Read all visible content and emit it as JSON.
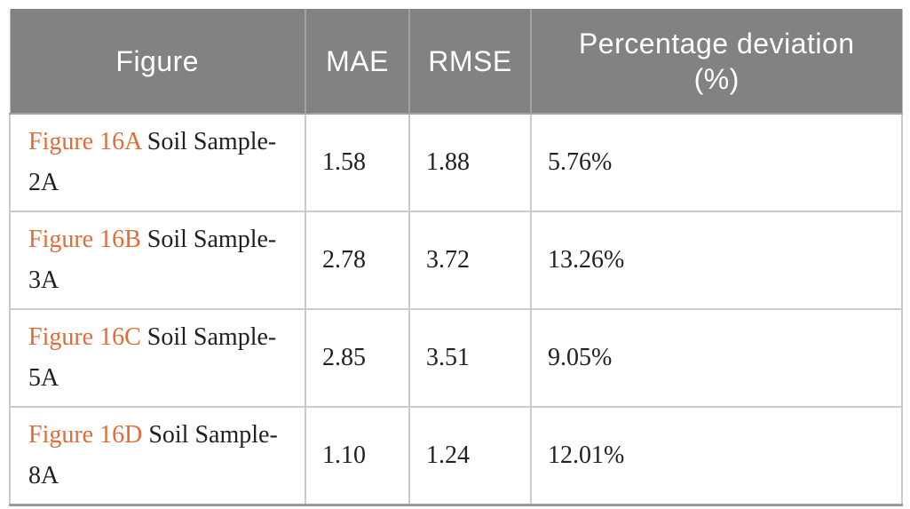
{
  "table": {
    "headers": {
      "figure": "Figure",
      "mae": "MAE",
      "rmse": "RMSE",
      "deviation": "Percentage deviation (%)"
    },
    "rows": [
      {
        "figure_link": "Figure 16A",
        "figure_text": "Soil Sample-2A",
        "mae": "1.58",
        "rmse": "1.88",
        "deviation": "5.76%"
      },
      {
        "figure_link": "Figure 16B",
        "figure_text": "Soil Sample-3A",
        "mae": "2.78",
        "rmse": "3.72",
        "deviation": "13.26%"
      },
      {
        "figure_link": "Figure 16C",
        "figure_text": "Soil Sample-5A",
        "mae": "2.85",
        "rmse": "3.51",
        "deviation": "9.05%"
      },
      {
        "figure_link": "Figure 16D",
        "figure_text": "Soil Sample-8A",
        "mae": "1.10",
        "rmse": "1.24",
        "deviation": "12.01%"
      }
    ]
  },
  "colors": {
    "header_bg": "#828282",
    "header_text": "#ffffff",
    "figure_link_orange": "#e06c38",
    "body_text": "#212121",
    "grid_border": "#cbcbcb",
    "bottom_border": "#9b9b9b"
  }
}
